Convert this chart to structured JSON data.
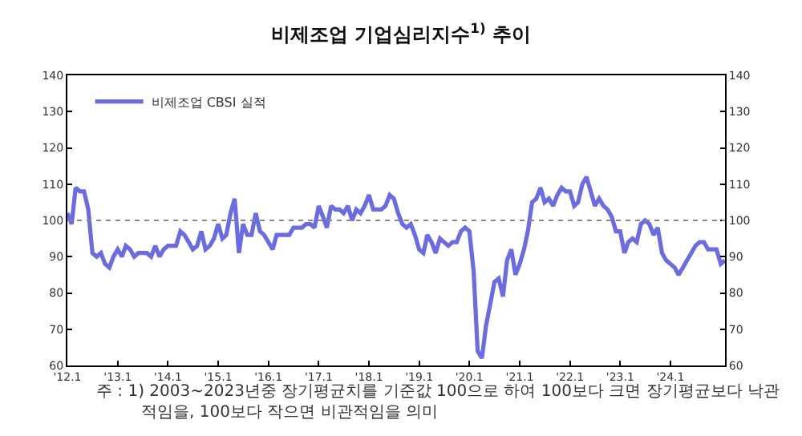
{
  "chart_data": {
    "type": "line",
    "title": "비제조업 기업심리지수$^{1)}$ 추이",
    "x": [
      "2012-01",
      "2012-02",
      "2012-03",
      "2012-04",
      "2012-05",
      "2012-06",
      "2012-07",
      "2012-08",
      "2012-09",
      "2012-10",
      "2012-11",
      "2012-12",
      "2013-01",
      "2013-02",
      "2013-03",
      "2013-04",
      "2013-05",
      "2013-06",
      "2013-07",
      "2013-08",
      "2013-09",
      "2013-10",
      "2013-11",
      "2013-12",
      "2014-01",
      "2014-02",
      "2014-03",
      "2014-04",
      "2014-05",
      "2014-06",
      "2014-07",
      "2014-08",
      "2014-09",
      "2014-10",
      "2014-11",
      "2014-12",
      "2015-01",
      "2015-02",
      "2015-03",
      "2015-04",
      "2015-05",
      "2015-06",
      "2015-07",
      "2015-08",
      "2015-09",
      "2015-10",
      "2015-11",
      "2015-12",
      "2016-01",
      "2016-02",
      "2016-03",
      "2016-04",
      "2016-05",
      "2016-06",
      "2016-07",
      "2016-08",
      "2016-09",
      "2016-10",
      "2016-11",
      "2016-12",
      "2017-01",
      "2017-02",
      "2017-03",
      "2017-04",
      "2017-05",
      "2017-06",
      "2017-07",
      "2017-08",
      "2017-09",
      "2017-10",
      "2017-11",
      "2017-12",
      "2018-01",
      "2018-02",
      "2018-03",
      "2018-04",
      "2018-05",
      "2018-06",
      "2018-07",
      "2018-08",
      "2018-09",
      "2018-10",
      "2018-11",
      "2018-12",
      "2019-01",
      "2019-02",
      "2019-03",
      "2019-04",
      "2019-05",
      "2019-06",
      "2019-07",
      "2019-08",
      "2019-09",
      "2019-10",
      "2019-11",
      "2019-12",
      "2020-01",
      "2020-02",
      "2020-03",
      "2020-04",
      "2020-05",
      "2020-06",
      "2020-07",
      "2020-08",
      "2020-09",
      "2020-10",
      "2020-11",
      "2020-12",
      "2021-01",
      "2021-02",
      "2021-03",
      "2021-04",
      "2021-05",
      "2021-06",
      "2021-07",
      "2021-08",
      "2021-09",
      "2021-10",
      "2021-11",
      "2021-12",
      "2022-01",
      "2022-02",
      "2022-03",
      "2022-04",
      "2022-05",
      "2022-06",
      "2022-07",
      "2022-08",
      "2022-09",
      "2022-10",
      "2022-11",
      "2022-12",
      "2023-01",
      "2023-02",
      "2023-03",
      "2023-04",
      "2023-05",
      "2023-06",
      "2023-07",
      "2023-08",
      "2023-09",
      "2023-10",
      "2023-11",
      "2023-12",
      "2024-01",
      "2024-02",
      "2024-03",
      "2024-04",
      "2024-05",
      "2024-06",
      "2024-07",
      "2024-08",
      "2024-09",
      "2024-10",
      "2024-11",
      "2024-12",
      "2025-01",
      "2025-02"
    ],
    "series": [
      {
        "name": "비제조업 CBSI 실적",
        "color": "#6b6be6",
        "values": [
          102,
          99,
          109,
          108,
          108,
          103,
          91,
          90,
          91,
          88,
          87,
          90,
          92,
          90,
          93,
          92,
          90,
          91,
          91,
          91,
          90,
          93,
          90,
          92,
          93,
          93,
          93,
          97,
          96,
          94,
          92,
          93,
          97,
          92,
          93,
          95,
          99,
          95,
          96,
          102,
          106,
          91,
          99,
          96,
          96,
          102,
          97,
          96,
          94,
          92,
          96,
          96,
          96,
          96,
          98,
          98,
          98,
          99,
          99,
          98,
          104,
          101,
          98,
          104,
          103,
          103,
          102,
          104,
          100,
          103,
          102,
          104,
          107,
          103,
          103,
          103,
          104,
          107,
          106,
          102,
          99,
          98,
          99,
          96,
          92,
          91,
          96,
          94,
          91,
          95,
          94,
          93,
          94,
          94,
          97,
          98,
          97,
          86,
          64,
          62,
          71,
          77,
          83,
          84,
          79,
          89,
          92,
          85,
          88,
          92,
          97,
          105,
          106,
          109,
          105,
          106,
          104,
          107,
          109,
          108,
          108,
          104,
          105,
          110,
          112,
          108,
          104,
          106,
          104,
          103,
          101,
          97,
          97,
          91,
          94,
          95,
          94,
          99,
          100,
          99,
          96,
          98,
          91,
          89,
          88,
          87,
          85,
          87,
          89,
          91,
          93,
          94,
          94,
          92,
          92,
          92,
          88,
          89
        ]
      }
    ],
    "xlim": [
      "2012-01",
      "2025-02"
    ],
    "xticks": [
      {
        "value": "2012-01",
        "label": "'12.1"
      },
      {
        "value": "2013-01",
        "label": "'13.1"
      },
      {
        "value": "2014-01",
        "label": "'14.1"
      },
      {
        "value": "2015-01",
        "label": "'15.1"
      },
      {
        "value": "2016-01",
        "label": "'16.1"
      },
      {
        "value": "2017-01",
        "label": "'17.1"
      },
      {
        "value": "2018-01",
        "label": "'18.1"
      },
      {
        "value": "2019-01",
        "label": "'19.1"
      },
      {
        "value": "2020-01",
        "label": "'20.1"
      },
      {
        "value": "2021-01",
        "label": "'21.1"
      },
      {
        "value": "2022-01",
        "label": "'22.1"
      },
      {
        "value": "2023-01",
        "label": "'23.1"
      },
      {
        "value": "2024-01",
        "label": "'24.1"
      }
    ],
    "ylim": [
      60,
      140
    ],
    "yticks": [
      60,
      70,
      80,
      90,
      100,
      110,
      120,
      130,
      140
    ],
    "y2lim": [
      60,
      140
    ],
    "y2ticks": [
      60,
      70,
      80,
      90,
      100,
      110,
      120,
      130,
      140
    ],
    "ref_lines": [
      {
        "axis": "y",
        "value": 100,
        "color": "#888888",
        "line_style": "dotted"
      }
    ],
    "legend": "top left",
    "line_style": "solid",
    "annotations": [
      "주 : 1) 2003~2023년중 장기평균치를 기준값 100으로 하여 100보다 크면 장기평균보다 낙관적임을, 100보다 작으면 비관적임을 의미"
    ]
  }
}
